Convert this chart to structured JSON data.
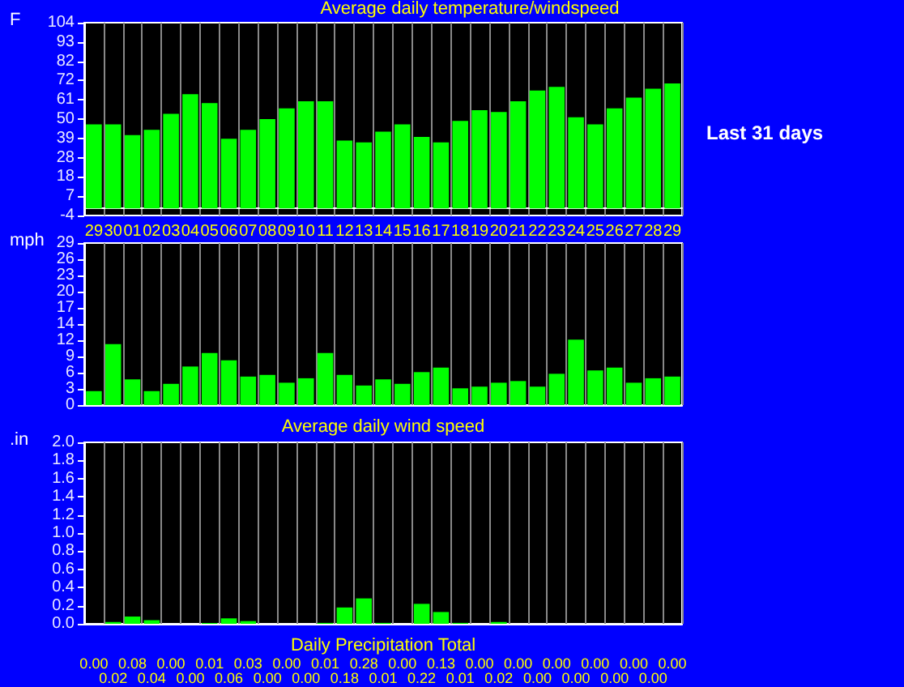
{
  "chart_data": [
    {
      "type": "bar",
      "title": "Average daily temperature/windspeed",
      "ylabel": "F",
      "annotations": [
        "Last 31 days"
      ],
      "categories": [
        "29",
        "30",
        "01",
        "02",
        "03",
        "04",
        "05",
        "06",
        "07",
        "08",
        "09",
        "10",
        "11",
        "12",
        "13",
        "14",
        "15",
        "16",
        "17",
        "18",
        "19",
        "20",
        "21",
        "22",
        "23",
        "24",
        "25",
        "26",
        "27",
        "28",
        "29"
      ],
      "values": [
        47,
        47,
        41,
        44,
        53,
        64,
        59,
        39,
        44,
        50,
        56,
        60,
        60,
        38,
        37,
        43,
        47,
        40,
        37,
        49,
        55,
        54,
        60,
        66,
        68,
        51,
        47,
        56,
        62,
        67,
        70
      ],
      "color": "#00ff00",
      "ylim": [
        -4,
        104
      ],
      "yticks": [
        -4,
        {
          "value": 6.8,
          "label": "7"
        },
        {
          "value": 17.6,
          "label": "18"
        },
        {
          "value": 28.4,
          "label": "28"
        },
        {
          "value": 39.2,
          "label": "39"
        },
        50,
        {
          "value": 60.8,
          "label": "61"
        },
        {
          "value": 71.6,
          "label": "72"
        },
        {
          "value": 82.4,
          "label": "82"
        },
        {
          "value": 93.2,
          "label": "93"
        },
        104
      ],
      "grid": "x"
    },
    {
      "type": "bar",
      "ylabel": "mph",
      "xlabel": "Average daily wind speed",
      "tick_labels": "y",
      "categories": [
        "29",
        "30",
        "01",
        "02",
        "03",
        "04",
        "05",
        "06",
        "07",
        "08",
        "09",
        "10",
        "11",
        "12",
        "13",
        "14",
        "15",
        "16",
        "17",
        "18",
        "19",
        "20",
        "21",
        "22",
        "23",
        "24",
        "25",
        "26",
        "27",
        "28",
        "29"
      ],
      "values": [
        2.5,
        10.9,
        4.6,
        2.5,
        3.8,
        6.9,
        9.3,
        8,
        5.1,
        5.4,
        4,
        4.8,
        9.3,
        5.4,
        3.5,
        4.6,
        3.8,
        5.9,
        6.7,
        3,
        3.3,
        4,
        4.3,
        3.3,
        5.6,
        11.7,
        6.2,
        6.7,
        4,
        4.8,
        5.1
      ],
      "color": "#00ff00",
      "ylim": [
        0,
        29
      ],
      "yticks": [
        0,
        {
          "value": 2.9,
          "label": "3"
        },
        {
          "value": 5.8,
          "label": "6"
        },
        {
          "value": 8.7,
          "label": "9"
        },
        {
          "value": 11.6,
          "label": "12"
        },
        {
          "value": 14.5,
          "label": "14"
        },
        {
          "value": 17.4,
          "label": "17"
        },
        {
          "value": 20.3,
          "label": "20"
        },
        {
          "value": 23.2,
          "label": "23"
        },
        {
          "value": 26.1,
          "label": "26"
        },
        29
      ],
      "grid": "x"
    },
    {
      "type": "bar",
      "ylabel": ".in",
      "xlabel": "Daily Precipitation Total",
      "tick_labels": "y",
      "categories": [
        "29",
        "30",
        "01",
        "02",
        "03",
        "04",
        "05",
        "06",
        "07",
        "08",
        "09",
        "10",
        "11",
        "12",
        "13",
        "14",
        "15",
        "16",
        "17",
        "18",
        "19",
        "20",
        "21",
        "22",
        "23",
        "24",
        "25",
        "26",
        "27",
        "28",
        "29"
      ],
      "values": [
        0,
        0.02,
        0.08,
        0.04,
        0,
        0,
        0.01,
        0.06,
        0.03,
        0,
        0,
        0,
        0.01,
        0.18,
        0.28,
        0.01,
        0,
        0.22,
        0.13,
        0.01,
        0,
        0.02,
        0,
        0,
        0,
        0,
        0,
        0,
        0,
        0,
        0
      ],
      "value_labels": [
        "0.00",
        "0.02",
        "0.08",
        "0.04",
        "0.00",
        "0.00",
        "0.01",
        "0.06",
        "0.03",
        "0.00",
        "0.00",
        "0.00",
        "0.01",
        "0.18",
        "0.28",
        "0.01",
        "0.00",
        "0.22",
        "0.13",
        "0.01",
        "0.00",
        "0.02",
        "0.00",
        "0.00",
        "0.00",
        "0.00",
        "0.00",
        "0.00",
        "0.00",
        "0.00",
        "0.00"
      ],
      "color": "#00ff00",
      "ylim": [
        0,
        2
      ],
      "yticks": [
        {
          "value": 0,
          "label": "0.0"
        },
        {
          "value": 0.2,
          "label": "0.2"
        },
        {
          "value": 0.4,
          "label": "0.4"
        },
        {
          "value": 0.6,
          "label": "0.6"
        },
        {
          "value": 0.8,
          "label": "0.8"
        },
        {
          "value": 1,
          "label": "1.0"
        },
        {
          "value": 1.2,
          "label": "1.2"
        },
        {
          "value": 1.4,
          "label": "1.4"
        },
        {
          "value": 1.6,
          "label": "1.6"
        },
        {
          "value": 1.8,
          "label": "1.8"
        },
        {
          "value": 2,
          "label": "2.0"
        }
      ],
      "grid": "x"
    }
  ]
}
